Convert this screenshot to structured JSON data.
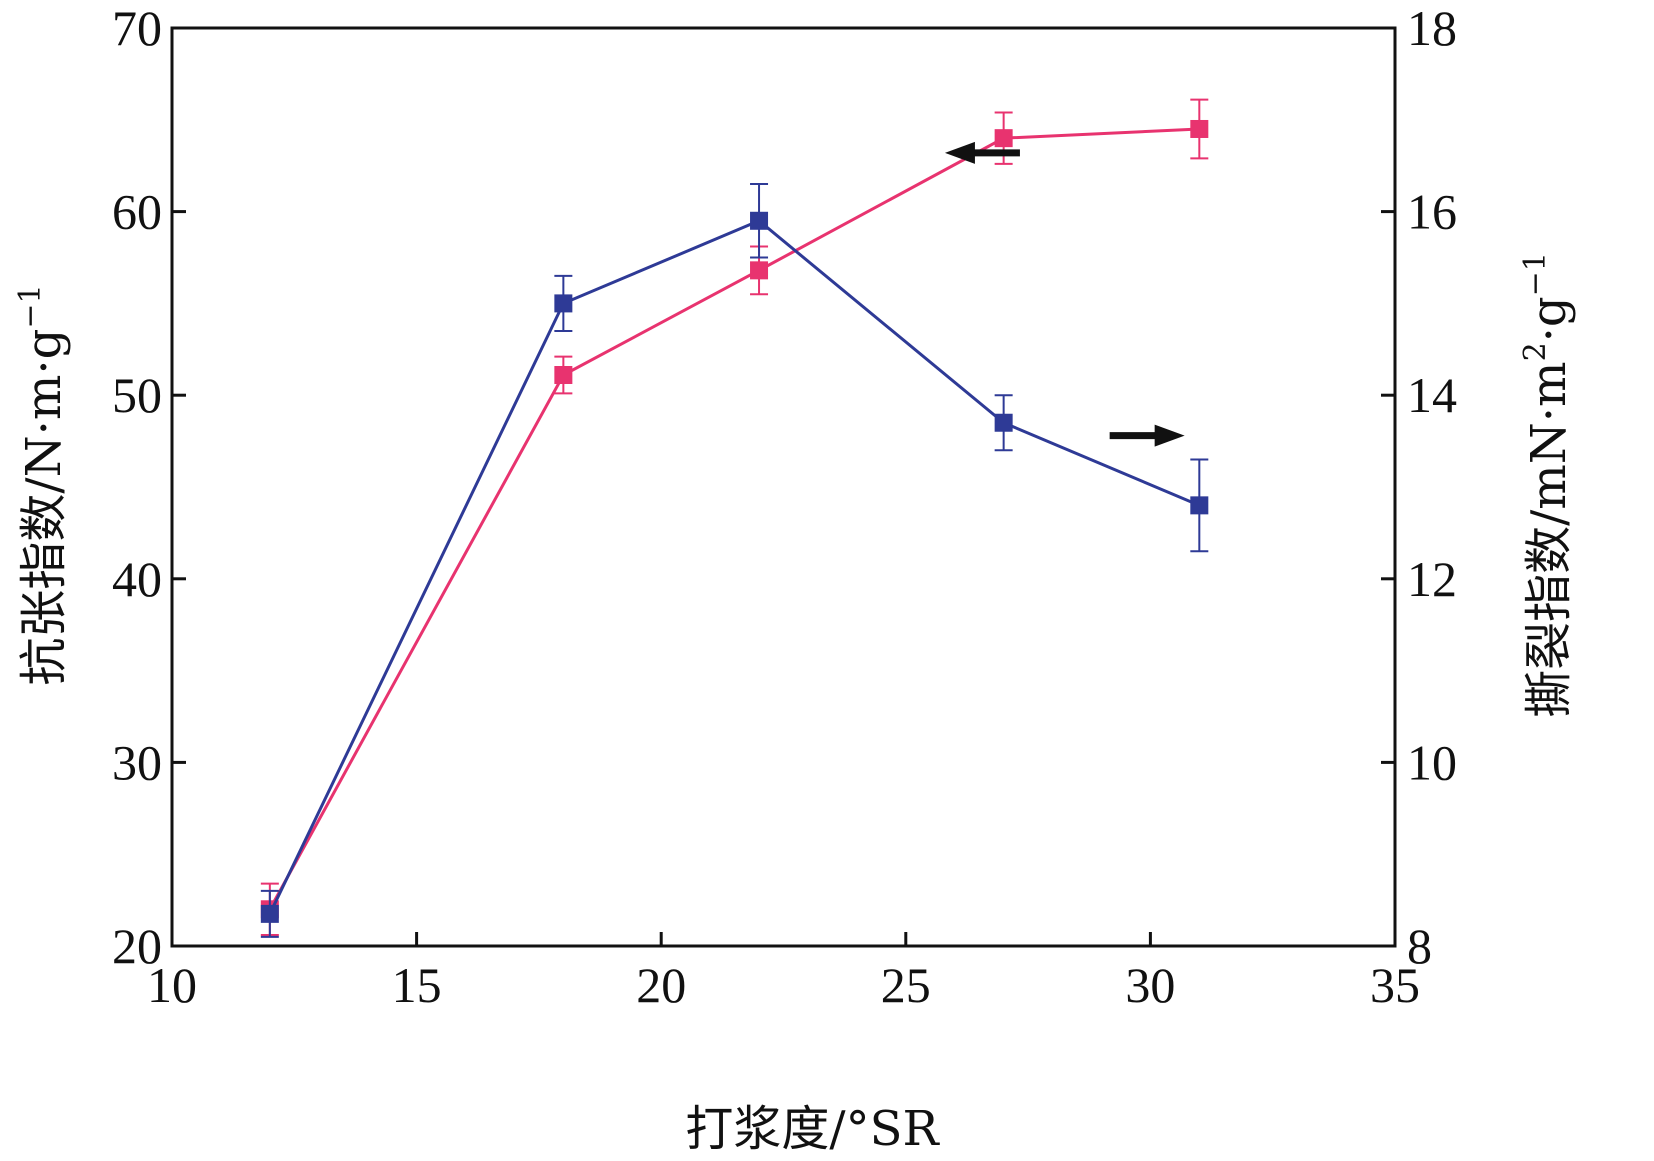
{
  "chart_data": {
    "type": "line",
    "x": [
      12,
      18,
      22,
      27,
      31
    ],
    "xlabel": "打浆度/°SR",
    "ylabel_left": {
      "text": "抗张指数/N·m·g",
      "superscript": "−1"
    },
    "ylabel_right": {
      "text": "撕裂指数/mN·m",
      "superscript_mid": "2",
      "text_after": "·g",
      "superscript": "−1"
    },
    "xlim": [
      10,
      35
    ],
    "ylim_left": [
      20,
      70
    ],
    "ylim_right": [
      8,
      18
    ],
    "xticks": [
      10,
      15,
      20,
      25,
      30,
      35
    ],
    "yticks_left": [
      20,
      30,
      40,
      50,
      60,
      70
    ],
    "yticks_right": [
      8,
      10,
      12,
      14,
      16,
      18
    ],
    "grid": false,
    "legend": "none (arrows indicate axis)",
    "series": [
      {
        "axis": "left",
        "color": "#e8336f",
        "marker": "square",
        "values": [
          22.0,
          51.1,
          56.8,
          64.0,
          64.5
        ],
        "error": [
          1.4,
          1.0,
          1.3,
          1.4,
          1.6
        ],
        "arrow": "left"
      },
      {
        "axis": "right",
        "color": "#2e3a96",
        "marker": "square",
        "values": [
          8.35,
          15.0,
          15.9,
          13.7,
          12.8
        ],
        "error": [
          0.25,
          0.3,
          0.4,
          0.3,
          0.5
        ],
        "arrow": "right"
      }
    ]
  }
}
